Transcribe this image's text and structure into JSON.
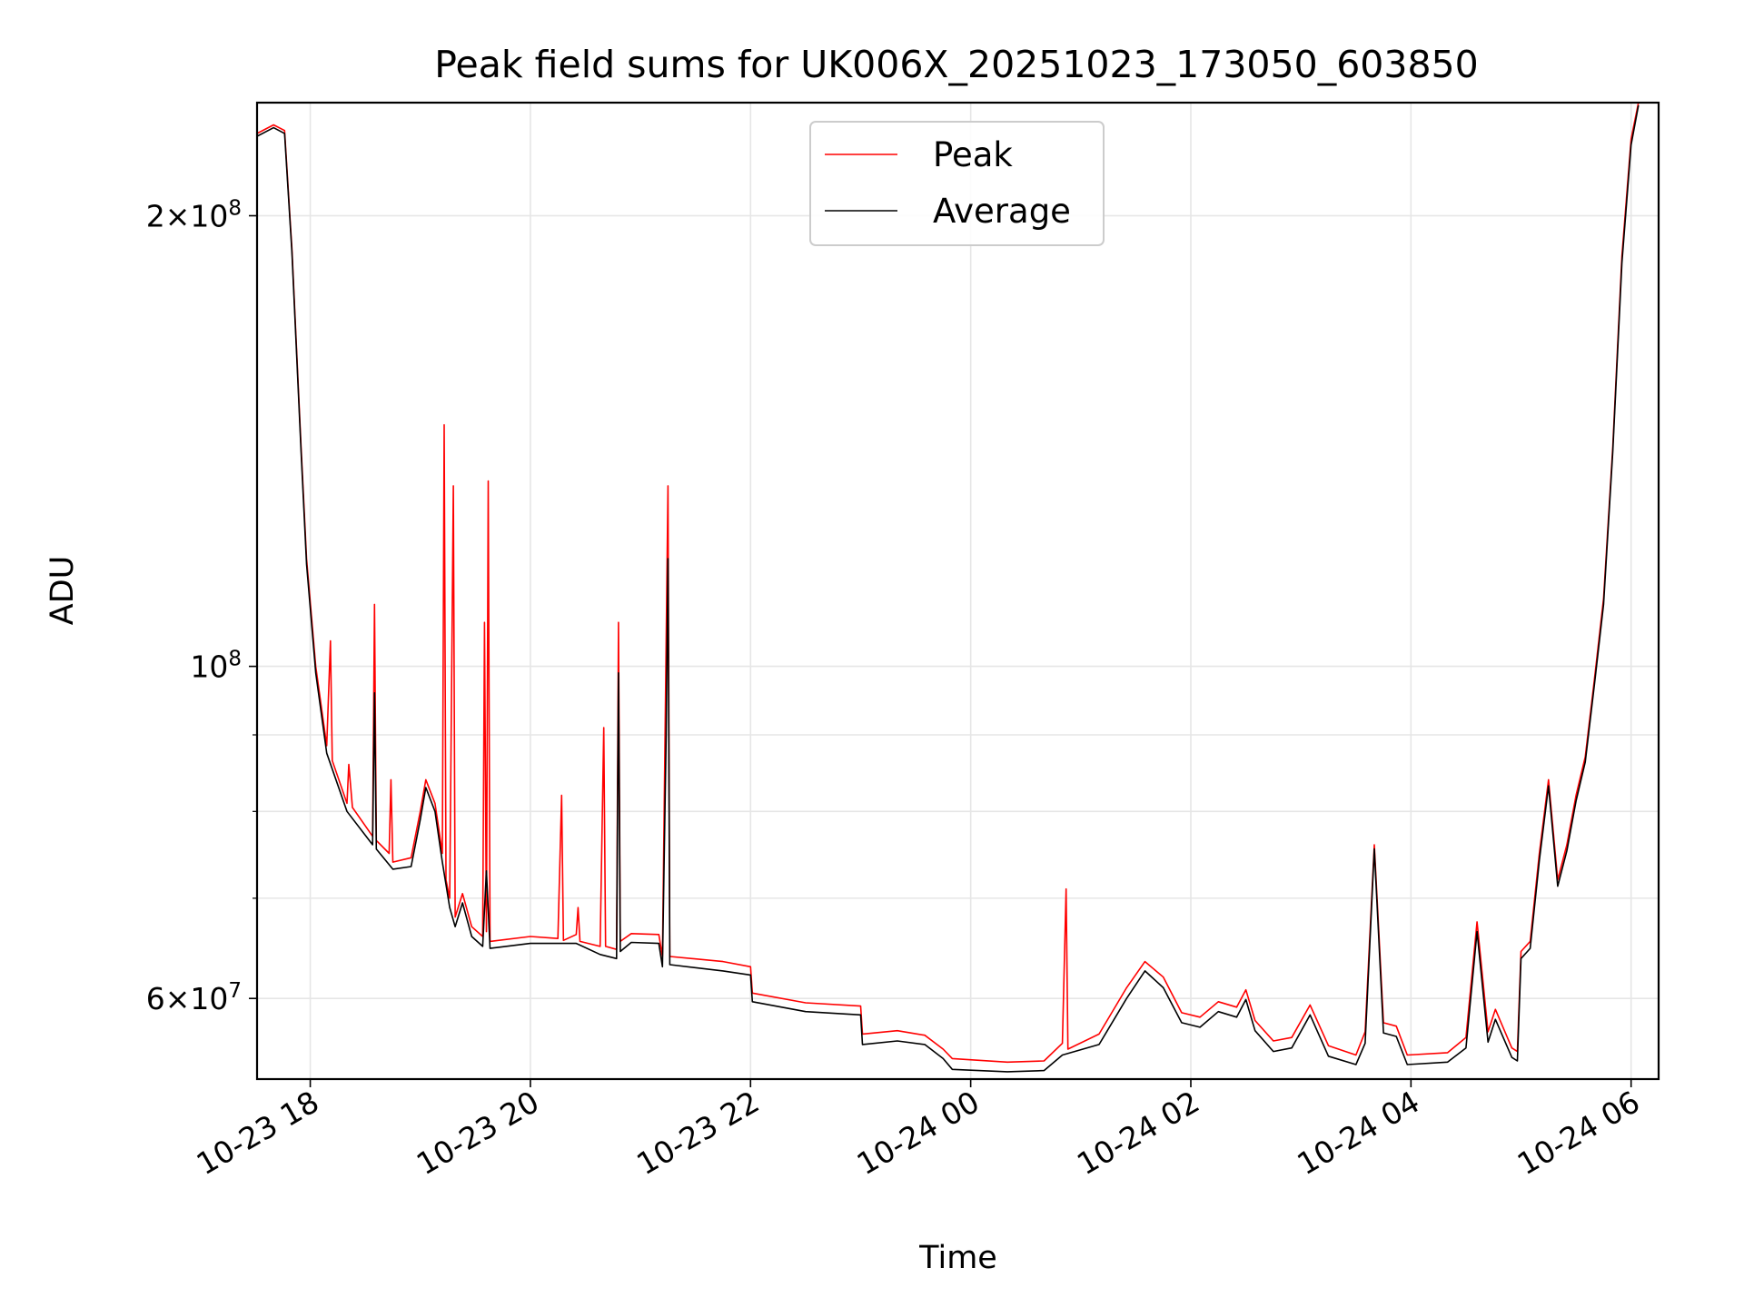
{
  "chart_data": {
    "type": "line",
    "title": "Peak field sums for UK006X_20251023_173050_603850",
    "xlabel": "Time",
    "ylabel": "ADU",
    "yscale": "log",
    "xlim": [
      "2025-10-23 17:31",
      "2025-10-24 06:15"
    ],
    "ylim": [
      53000000,
      238000000
    ],
    "grid": true,
    "legend_position": "top-center",
    "x_ticks": [
      {
        "value": "2025-10-23 18:00",
        "label": "10-23 18"
      },
      {
        "value": "2025-10-23 20:00",
        "label": "10-23 20"
      },
      {
        "value": "2025-10-23 22:00",
        "label": "10-23 22"
      },
      {
        "value": "2025-10-24 00:00",
        "label": "10-24 00"
      },
      {
        "value": "2025-10-24 02:00",
        "label": "10-24 02"
      },
      {
        "value": "2025-10-24 04:00",
        "label": "10-24 04"
      },
      {
        "value": "2025-10-24 06:00",
        "label": "10-24 06"
      }
    ],
    "y_ticks": [
      {
        "value": 200000000,
        "mantissa": "2",
        "base": "10",
        "exponent": "8"
      },
      {
        "value": 100000000,
        "mantissa": "",
        "base": "10",
        "exponent": "8"
      },
      {
        "value": 60000000,
        "mantissa": "6",
        "base": "10",
        "exponent": "7"
      }
    ],
    "series": [
      {
        "name": "Peak",
        "color": "#ff0000",
        "points": [
          [
            "2025-10-23 17:31",
            227000000
          ],
          [
            "2025-10-23 17:40",
            230000000
          ],
          [
            "2025-10-23 17:46",
            228000000
          ],
          [
            "2025-10-23 17:50",
            190000000
          ],
          [
            "2025-10-23 17:55",
            140000000
          ],
          [
            "2025-10-23 17:58",
            118000000
          ],
          [
            "2025-10-23 18:03",
            100000000
          ],
          [
            "2025-10-23 18:09",
            88500000
          ],
          [
            "2025-10-23 18:11",
            104000000
          ],
          [
            "2025-10-23 18:12",
            86500000
          ],
          [
            "2025-10-23 18:20",
            81000000
          ],
          [
            "2025-10-23 18:21",
            86000000
          ],
          [
            "2025-10-23 18:23",
            80500000
          ],
          [
            "2025-10-23 18:34",
            77000000
          ],
          [
            "2025-10-23 18:35",
            110000000
          ],
          [
            "2025-10-23 18:36",
            76500000
          ],
          [
            "2025-10-23 18:43",
            75000000
          ],
          [
            "2025-10-23 18:44",
            84000000
          ],
          [
            "2025-10-23 18:45",
            74000000
          ],
          [
            "2025-10-23 18:55",
            74500000
          ],
          [
            "2025-10-23 19:00",
            80000000
          ],
          [
            "2025-10-23 19:03",
            84000000
          ],
          [
            "2025-10-23 19:08",
            81000000
          ],
          [
            "2025-10-23 19:12",
            75000000
          ],
          [
            "2025-10-23 19:13",
            145000000
          ],
          [
            "2025-10-23 19:14",
            72000000
          ],
          [
            "2025-10-23 19:16",
            70000000
          ],
          [
            "2025-10-23 19:18",
            132000000
          ],
          [
            "2025-10-23 19:19",
            68000000
          ],
          [
            "2025-10-23 19:23",
            70500000
          ],
          [
            "2025-10-23 19:28",
            67000000
          ],
          [
            "2025-10-23 19:34",
            66000000
          ],
          [
            "2025-10-23 19:35",
            107000000
          ],
          [
            "2025-10-23 19:36",
            66500000
          ],
          [
            "2025-10-23 19:37",
            133000000
          ],
          [
            "2025-10-23 19:38",
            65500000
          ],
          [
            "2025-10-23 20:00",
            66000000
          ],
          [
            "2025-10-23 20:15",
            65800000
          ],
          [
            "2025-10-23 20:17",
            82000000
          ],
          [
            "2025-10-23 20:18",
            65600000
          ],
          [
            "2025-10-23 20:25",
            66200000
          ],
          [
            "2025-10-23 20:26",
            69000000
          ],
          [
            "2025-10-23 20:27",
            65500000
          ],
          [
            "2025-10-23 20:38",
            65000000
          ],
          [
            "2025-10-23 20:40",
            91000000
          ],
          [
            "2025-10-23 20:41",
            65000000
          ],
          [
            "2025-10-23 20:47",
            64700000
          ],
          [
            "2025-10-23 20:48",
            107000000
          ],
          [
            "2025-10-23 20:49",
            65500000
          ],
          [
            "2025-10-23 20:55",
            66300000
          ],
          [
            "2025-10-23 21:10",
            66200000
          ],
          [
            "2025-10-23 21:12",
            64000000
          ],
          [
            "2025-10-23 21:14",
            104000000
          ],
          [
            "2025-10-23 21:15",
            132000000
          ],
          [
            "2025-10-23 21:16",
            64000000
          ],
          [
            "2025-10-23 21:45",
            63500000
          ],
          [
            "2025-10-23 22:00",
            63000000
          ],
          [
            "2025-10-23 22:01",
            60500000
          ],
          [
            "2025-10-23 22:30",
            59600000
          ],
          [
            "2025-10-23 23:00",
            59300000
          ],
          [
            "2025-10-23 23:01",
            56800000
          ],
          [
            "2025-10-23 23:20",
            57100000
          ],
          [
            "2025-10-23 23:35",
            56700000
          ],
          [
            "2025-10-23 23:45",
            55500000
          ],
          [
            "2025-10-23 23:50",
            54700000
          ],
          [
            "2025-10-24 00:20",
            54400000
          ],
          [
            "2025-10-24 00:40",
            54500000
          ],
          [
            "2025-10-24 00:50",
            56000000
          ],
          [
            "2025-10-24 00:52",
            71000000
          ],
          [
            "2025-10-24 00:53",
            55500000
          ],
          [
            "2025-10-24 01:10",
            56800000
          ],
          [
            "2025-10-24 01:25",
            61000000
          ],
          [
            "2025-10-24 01:35",
            63500000
          ],
          [
            "2025-10-24 01:45",
            62000000
          ],
          [
            "2025-10-24 01:55",
            58700000
          ],
          [
            "2025-10-24 02:05",
            58300000
          ],
          [
            "2025-10-24 02:15",
            59700000
          ],
          [
            "2025-10-24 02:25",
            59200000
          ],
          [
            "2025-10-24 02:30",
            60800000
          ],
          [
            "2025-10-24 02:35",
            58000000
          ],
          [
            "2025-10-24 02:45",
            56200000
          ],
          [
            "2025-10-24 02:55",
            56500000
          ],
          [
            "2025-10-24 03:05",
            59400000
          ],
          [
            "2025-10-24 03:15",
            55800000
          ],
          [
            "2025-10-24 03:30",
            55000000
          ],
          [
            "2025-10-24 03:35",
            57000000
          ],
          [
            "2025-10-24 03:40",
            76000000
          ],
          [
            "2025-10-24 03:45",
            57800000
          ],
          [
            "2025-10-24 03:52",
            57500000
          ],
          [
            "2025-10-24 03:58",
            55000000
          ],
          [
            "2025-10-24 04:20",
            55200000
          ],
          [
            "2025-10-24 04:30",
            56500000
          ],
          [
            "2025-10-24 04:36",
            67500000
          ],
          [
            "2025-10-24 04:42",
            57000000
          ],
          [
            "2025-10-24 04:46",
            59000000
          ],
          [
            "2025-10-24 04:55",
            55600000
          ],
          [
            "2025-10-24 04:58",
            55300000
          ],
          [
            "2025-10-24 05:00",
            64500000
          ],
          [
            "2025-10-24 05:05",
            65500000
          ],
          [
            "2025-10-24 05:10",
            75000000
          ],
          [
            "2025-10-24 05:15",
            84000000
          ],
          [
            "2025-10-24 05:20",
            72000000
          ],
          [
            "2025-10-24 05:25",
            76000000
          ],
          [
            "2025-10-24 05:30",
            82000000
          ],
          [
            "2025-10-24 05:35",
            87000000
          ],
          [
            "2025-10-24 05:40",
            98000000
          ],
          [
            "2025-10-24 05:45",
            111000000
          ],
          [
            "2025-10-24 05:50",
            140000000
          ],
          [
            "2025-10-24 05:55",
            188000000
          ],
          [
            "2025-10-24 06:00",
            225000000
          ],
          [
            "2025-10-24 06:04",
            238000000
          ]
        ]
      },
      {
        "name": "Average",
        "color": "#000000",
        "points": [
          [
            "2025-10-23 17:31",
            226000000
          ],
          [
            "2025-10-23 17:40",
            229000000
          ],
          [
            "2025-10-23 17:46",
            227000000
          ],
          [
            "2025-10-23 17:50",
            189000000
          ],
          [
            "2025-10-23 17:55",
            139000000
          ],
          [
            "2025-10-23 17:58",
            117000000
          ],
          [
            "2025-10-23 18:03",
            99000000
          ],
          [
            "2025-10-23 18:09",
            87500000
          ],
          [
            "2025-10-23 18:20",
            80000000
          ],
          [
            "2025-10-23 18:34",
            76000000
          ],
          [
            "2025-10-23 18:35",
            96000000
          ],
          [
            "2025-10-23 18:36",
            75500000
          ],
          [
            "2025-10-23 18:45",
            73200000
          ],
          [
            "2025-10-23 18:55",
            73500000
          ],
          [
            "2025-10-23 19:00",
            79000000
          ],
          [
            "2025-10-23 19:03",
            83000000
          ],
          [
            "2025-10-23 19:08",
            80000000
          ],
          [
            "2025-10-23 19:12",
            74000000
          ],
          [
            "2025-10-23 19:16",
            69000000
          ],
          [
            "2025-10-23 19:19",
            67000000
          ],
          [
            "2025-10-23 19:23",
            69500000
          ],
          [
            "2025-10-23 19:28",
            66000000
          ],
          [
            "2025-10-23 19:34",
            65000000
          ],
          [
            "2025-10-23 19:36",
            73000000
          ],
          [
            "2025-10-23 19:38",
            64800000
          ],
          [
            "2025-10-23 20:00",
            65300000
          ],
          [
            "2025-10-23 20:25",
            65300000
          ],
          [
            "2025-10-23 20:38",
            64200000
          ],
          [
            "2025-10-23 20:47",
            63800000
          ],
          [
            "2025-10-23 20:48",
            99000000
          ],
          [
            "2025-10-23 20:49",
            64500000
          ],
          [
            "2025-10-23 20:55",
            65400000
          ],
          [
            "2025-10-23 21:10",
            65300000
          ],
          [
            "2025-10-23 21:12",
            63000000
          ],
          [
            "2025-10-23 21:14",
            90000000
          ],
          [
            "2025-10-23 21:15",
            118000000
          ],
          [
            "2025-10-23 21:16",
            63200000
          ],
          [
            "2025-10-23 21:45",
            62600000
          ],
          [
            "2025-10-23 22:00",
            62200000
          ],
          [
            "2025-10-23 22:01",
            59700000
          ],
          [
            "2025-10-23 22:30",
            58800000
          ],
          [
            "2025-10-23 23:00",
            58500000
          ],
          [
            "2025-10-23 23:01",
            55900000
          ],
          [
            "2025-10-23 23:20",
            56200000
          ],
          [
            "2025-10-23 23:35",
            55900000
          ],
          [
            "2025-10-23 23:45",
            54700000
          ],
          [
            "2025-10-23 23:50",
            53800000
          ],
          [
            "2025-10-24 00:20",
            53600000
          ],
          [
            "2025-10-24 00:40",
            53700000
          ],
          [
            "2025-10-24 00:50",
            55000000
          ],
          [
            "2025-10-24 01:10",
            55900000
          ],
          [
            "2025-10-24 01:25",
            60000000
          ],
          [
            "2025-10-24 01:35",
            62600000
          ],
          [
            "2025-10-24 01:45",
            61000000
          ],
          [
            "2025-10-24 01:55",
            57800000
          ],
          [
            "2025-10-24 02:05",
            57400000
          ],
          [
            "2025-10-24 02:15",
            58800000
          ],
          [
            "2025-10-24 02:25",
            58300000
          ],
          [
            "2025-10-24 02:30",
            59900000
          ],
          [
            "2025-10-24 02:35",
            57100000
          ],
          [
            "2025-10-24 02:45",
            55300000
          ],
          [
            "2025-10-24 02:55",
            55600000
          ],
          [
            "2025-10-24 03:05",
            58500000
          ],
          [
            "2025-10-24 03:15",
            54900000
          ],
          [
            "2025-10-24 03:30",
            54200000
          ],
          [
            "2025-10-24 03:35",
            56000000
          ],
          [
            "2025-10-24 03:40",
            75500000
          ],
          [
            "2025-10-24 03:45",
            56900000
          ],
          [
            "2025-10-24 03:52",
            56600000
          ],
          [
            "2025-10-24 03:58",
            54200000
          ],
          [
            "2025-10-24 04:20",
            54400000
          ],
          [
            "2025-10-24 04:30",
            55600000
          ],
          [
            "2025-10-24 04:36",
            66500000
          ],
          [
            "2025-10-24 04:42",
            56100000
          ],
          [
            "2025-10-24 04:46",
            58100000
          ],
          [
            "2025-10-24 04:55",
            54800000
          ],
          [
            "2025-10-24 04:58",
            54500000
          ],
          [
            "2025-10-24 05:00",
            63800000
          ],
          [
            "2025-10-24 05:05",
            64800000
          ],
          [
            "2025-10-24 05:10",
            74200000
          ],
          [
            "2025-10-24 05:15",
            83200000
          ],
          [
            "2025-10-24 05:20",
            71300000
          ],
          [
            "2025-10-24 05:25",
            75300000
          ],
          [
            "2025-10-24 05:30",
            81300000
          ],
          [
            "2025-10-24 05:35",
            86300000
          ],
          [
            "2025-10-24 05:40",
            97200000
          ],
          [
            "2025-10-24 05:45",
            110000000
          ],
          [
            "2025-10-24 05:50",
            139000000
          ],
          [
            "2025-10-24 05:55",
            186000000
          ],
          [
            "2025-10-24 06:00",
            223000000
          ],
          [
            "2025-10-24 06:04",
            237000000
          ]
        ]
      }
    ]
  }
}
